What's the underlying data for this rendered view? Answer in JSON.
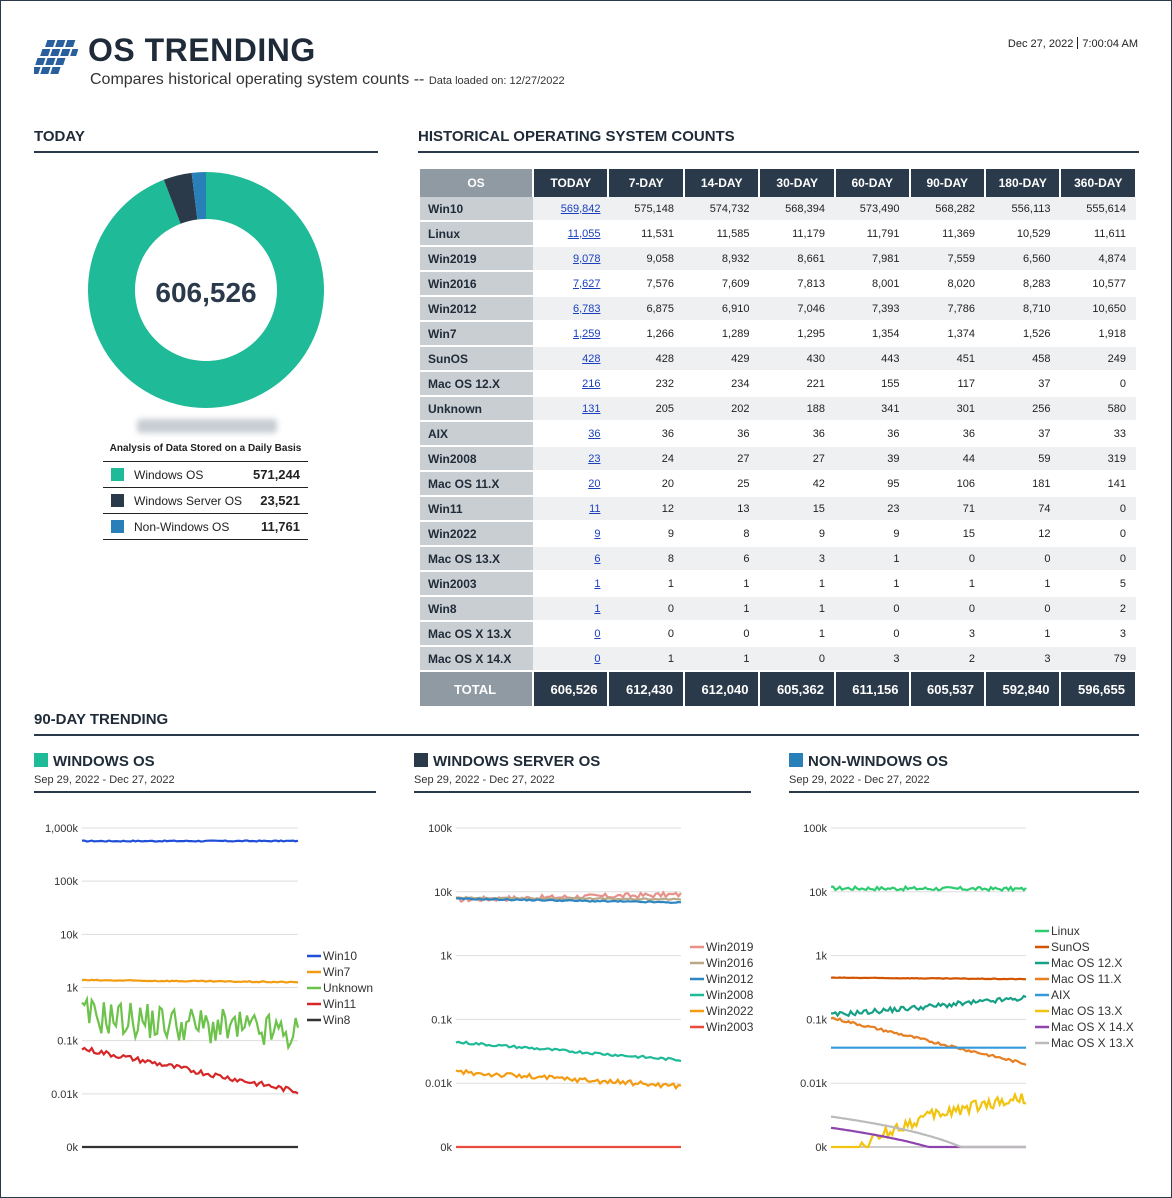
{
  "header": {
    "title": "OS TRENDING",
    "subtitle": "Compares historical operating system counts --",
    "data_loaded": "Data loaded on: 12/27/2022",
    "date": "Dec 27, 2022",
    "time": "7:00:04 AM"
  },
  "today": {
    "heading": "TODAY",
    "total": "606,526",
    "caption": "Analysis of Data Stored on a Daily Basis",
    "legend": [
      {
        "label": "Windows OS",
        "value": "571,244",
        "color": "#1fba97",
        "count": 571244
      },
      {
        "label": "Windows Server OS",
        "value": "23,521",
        "color": "#2b3a4a",
        "count": 23521
      },
      {
        "label": "Non-Windows OS",
        "value": "11,761",
        "color": "#2980b9",
        "count": 11761
      }
    ]
  },
  "historical": {
    "heading": "HISTORICAL OPERATING SYSTEM COUNTS",
    "columns": [
      "OS",
      "TODAY",
      "7-DAY",
      "14-DAY",
      "30-DAY",
      "60-DAY",
      "90-DAY",
      "180-DAY",
      "360-DAY"
    ],
    "rows": [
      [
        "Win10",
        "569,842",
        "575,148",
        "574,732",
        "568,394",
        "573,490",
        "568,282",
        "556,113",
        "555,614"
      ],
      [
        "Linux",
        "11,055",
        "11,531",
        "11,585",
        "11,179",
        "11,791",
        "11,369",
        "10,529",
        "11,611"
      ],
      [
        "Win2019",
        "9,078",
        "9,058",
        "8,932",
        "8,661",
        "7,981",
        "7,559",
        "6,560",
        "4,874"
      ],
      [
        "Win2016",
        "7,627",
        "7,576",
        "7,609",
        "7,813",
        "8,001",
        "8,020",
        "8,283",
        "10,577"
      ],
      [
        "Win2012",
        "6,783",
        "6,875",
        "6,910",
        "7,046",
        "7,393",
        "7,786",
        "8,710",
        "10,650"
      ],
      [
        "Win7",
        "1,259",
        "1,266",
        "1,289",
        "1,295",
        "1,354",
        "1,374",
        "1,526",
        "1,918"
      ],
      [
        "SunOS",
        "428",
        "428",
        "429",
        "430",
        "443",
        "451",
        "458",
        "249"
      ],
      [
        "Mac OS 12.X",
        "216",
        "232",
        "234",
        "221",
        "155",
        "117",
        "37",
        "0"
      ],
      [
        "Unknown",
        "131",
        "205",
        "202",
        "188",
        "341",
        "301",
        "256",
        "580"
      ],
      [
        "AIX",
        "36",
        "36",
        "36",
        "36",
        "36",
        "36",
        "37",
        "33"
      ],
      [
        "Win2008",
        "23",
        "24",
        "27",
        "27",
        "39",
        "44",
        "59",
        "319"
      ],
      [
        "Mac OS 11.X",
        "20",
        "20",
        "25",
        "42",
        "95",
        "106",
        "181",
        "141"
      ],
      [
        "Win11",
        "11",
        "12",
        "13",
        "15",
        "23",
        "71",
        "74",
        "0"
      ],
      [
        "Win2022",
        "9",
        "9",
        "8",
        "9",
        "9",
        "15",
        "12",
        "0"
      ],
      [
        "Mac OS 13.X",
        "6",
        "8",
        "6",
        "3",
        "1",
        "0",
        "0",
        "0"
      ],
      [
        "Win2003",
        "1",
        "1",
        "1",
        "1",
        "1",
        "1",
        "1",
        "5"
      ],
      [
        "Win8",
        "1",
        "0",
        "1",
        "1",
        "0",
        "0",
        "0",
        "2"
      ],
      [
        "Mac OS X 13.X",
        "0",
        "0",
        "0",
        "1",
        "0",
        "3",
        "1",
        "3"
      ],
      [
        "Mac OS X 14.X",
        "0",
        "1",
        "1",
        "0",
        "3",
        "2",
        "3",
        "79"
      ]
    ],
    "total": [
      "TOTAL",
      "606,526",
      "612,430",
      "612,040",
      "605,362",
      "611,156",
      "605,537",
      "592,840",
      "596,655"
    ]
  },
  "trending": {
    "heading": "90-DAY TRENDING"
  },
  "chart_data": [
    {
      "type": "pie",
      "title": "606,526",
      "categories": [
        "Windows OS",
        "Windows Server OS",
        "Non-Windows OS"
      ],
      "values": [
        571244,
        23521,
        11761
      ],
      "colors": [
        "#1fba97",
        "#2b3a4a",
        "#2980b9"
      ]
    },
    {
      "type": "line",
      "title": "WINDOWS OS",
      "subtitle": "Sep 29, 2022 - Dec 27, 2022",
      "square_color": "#1fba97",
      "yscale": "log",
      "yticks": [
        "0k",
        "0.01k",
        "0.1k",
        "1k",
        "10k",
        "100k",
        "1,000k"
      ],
      "ytick_values": [
        1,
        10,
        100,
        1000,
        10000,
        100000,
        1000000
      ],
      "series": [
        {
          "name": "Win10",
          "color": "#1f4fd8",
          "start": 568000,
          "end": 569842,
          "noise": 0.01
        },
        {
          "name": "Win7",
          "color": "#f39c12",
          "start": 1374,
          "end": 1259,
          "noise": 0.01
        },
        {
          "name": "Unknown",
          "color": "#6cc24a",
          "start": 301,
          "end": 131,
          "noise": 0.35
        },
        {
          "name": "Win11",
          "color": "#d62728",
          "start": 71,
          "end": 11,
          "noise": 0.05
        },
        {
          "name": "Win8",
          "color": "#333333",
          "start": 0,
          "end": 1,
          "noise": 0
        }
      ]
    },
    {
      "type": "line",
      "title": "WINDOWS SERVER OS",
      "subtitle": "Sep 29, 2022 - Dec 27, 2022",
      "square_color": "#2b3a4a",
      "yscale": "log",
      "yticks": [
        "0k",
        "0.01k",
        "0.1k",
        "1k",
        "10k",
        "100k"
      ],
      "ytick_values": [
        1,
        10,
        100,
        1000,
        10000,
        100000
      ],
      "series": [
        {
          "name": "Win2019",
          "color": "#e8908a",
          "start": 7559,
          "end": 9078,
          "noise": 0.04
        },
        {
          "name": "Win2016",
          "color": "#b8a888",
          "start": 8020,
          "end": 7627,
          "noise": 0.01
        },
        {
          "name": "Win2012",
          "color": "#2e86c1",
          "start": 7786,
          "end": 6783,
          "noise": 0.01
        },
        {
          "name": "Win2008",
          "color": "#1fba97",
          "start": 44,
          "end": 23,
          "noise": 0.02
        },
        {
          "name": "Win2022",
          "color": "#f39c12",
          "start": 15,
          "end": 9,
          "noise": 0.04
        },
        {
          "name": "Win2003",
          "color": "#e74c3c",
          "start": 1,
          "end": 1,
          "noise": 0
        }
      ]
    },
    {
      "type": "line",
      "title": "NON-WINDOWS OS",
      "subtitle": "Sep 29, 2022 - Dec 27, 2022",
      "square_color": "#2980b9",
      "yscale": "log",
      "yticks": [
        "0k",
        "0.01k",
        "0.1k",
        "1k",
        "10k",
        "100k"
      ],
      "ytick_values": [
        1,
        10,
        100,
        1000,
        10000,
        100000
      ],
      "series": [
        {
          "name": "Linux",
          "color": "#2ecc71",
          "start": 11369,
          "end": 11055,
          "noise": 0.03
        },
        {
          "name": "SunOS",
          "color": "#d35400",
          "start": 451,
          "end": 428,
          "noise": 0.005
        },
        {
          "name": "Mac OS 12.X",
          "color": "#16a085",
          "start": 117,
          "end": 216,
          "noise": 0.04
        },
        {
          "name": "Mac OS 11.X",
          "color": "#e67e22",
          "start": 106,
          "end": 20,
          "noise": 0.02
        },
        {
          "name": "AIX",
          "color": "#3498db",
          "start": 36,
          "end": 36,
          "noise": 0
        },
        {
          "name": "Mac OS 13.X",
          "color": "#f1c40f",
          "start": 0,
          "end": 6,
          "noise": 0.1
        },
        {
          "name": "Mac OS X 14.X",
          "color": "#8e44ad",
          "start": 2,
          "end": 0,
          "noise": 0
        },
        {
          "name": "Mac OS X 13.X",
          "color": "#bbbbbb",
          "start": 3,
          "end": 0,
          "noise": 0
        }
      ]
    }
  ]
}
